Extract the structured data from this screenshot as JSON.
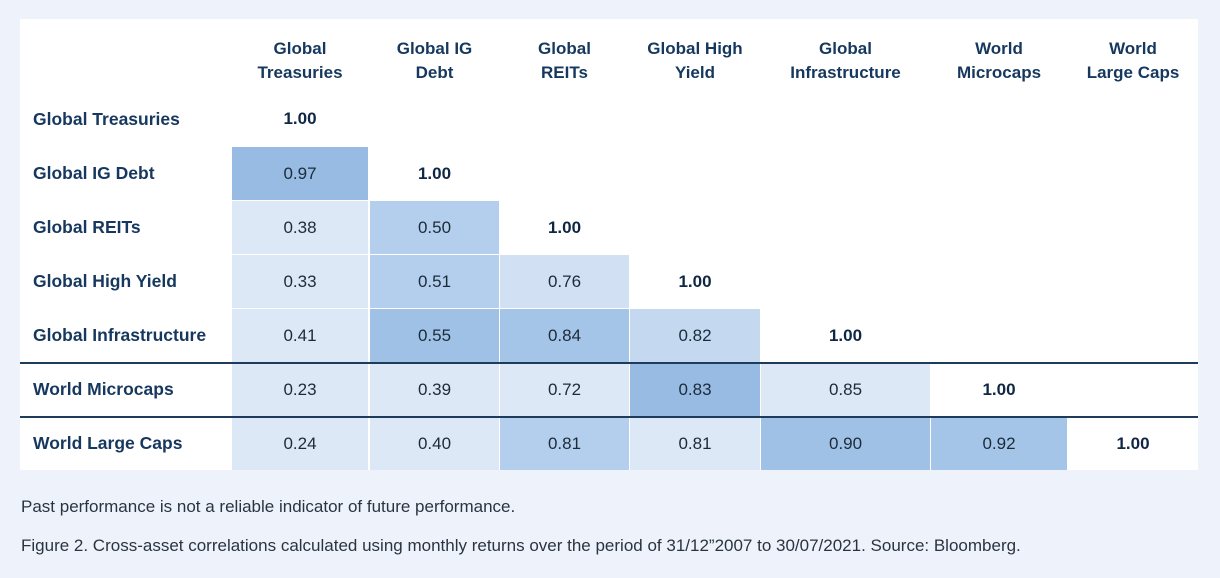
{
  "chart_data": {
    "type": "table",
    "columns": [
      [
        "Global",
        "Treasuries"
      ],
      [
        "Global IG",
        "Debt"
      ],
      [
        "Global",
        "REITs"
      ],
      [
        "Global High",
        "Yield"
      ],
      [
        "Global",
        "Infrastructure"
      ],
      [
        "World",
        "Microcaps"
      ],
      [
        "World",
        "Large Caps"
      ]
    ],
    "rows": [
      "Global Treasuries",
      "Global IG Debt",
      "Global REITs",
      "Global High Yield",
      "Global Infrastructure",
      "World Microcaps",
      "World Large Caps"
    ],
    "values": [
      [
        "1.00"
      ],
      [
        "0.97",
        "1.00"
      ],
      [
        "0.38",
        "0.50",
        "1.00"
      ],
      [
        "0.33",
        "0.51",
        "0.76",
        "1.00"
      ],
      [
        "0.41",
        "0.55",
        "0.84",
        "0.82",
        "1.00"
      ],
      [
        "0.23",
        "0.39",
        "0.72",
        "0.83",
        "0.85",
        "1.00"
      ],
      [
        "0.24",
        "0.40",
        "0.81",
        "0.81",
        "0.90",
        "0.92",
        "1.00"
      ]
    ],
    "colors": {
      "light": "#dce8f6",
      "mid": "#b5d0ed",
      "dark": "#95b9e2",
      "separator": "#1e3b5c"
    }
  },
  "footnote": "Past performance is not a reliable indicator of future performance.",
  "caption": "Figure 2. Cross-asset correlations calculated using monthly returns over the period of 31/12”2007 to 30/07/2021.  Source: Bloomberg."
}
